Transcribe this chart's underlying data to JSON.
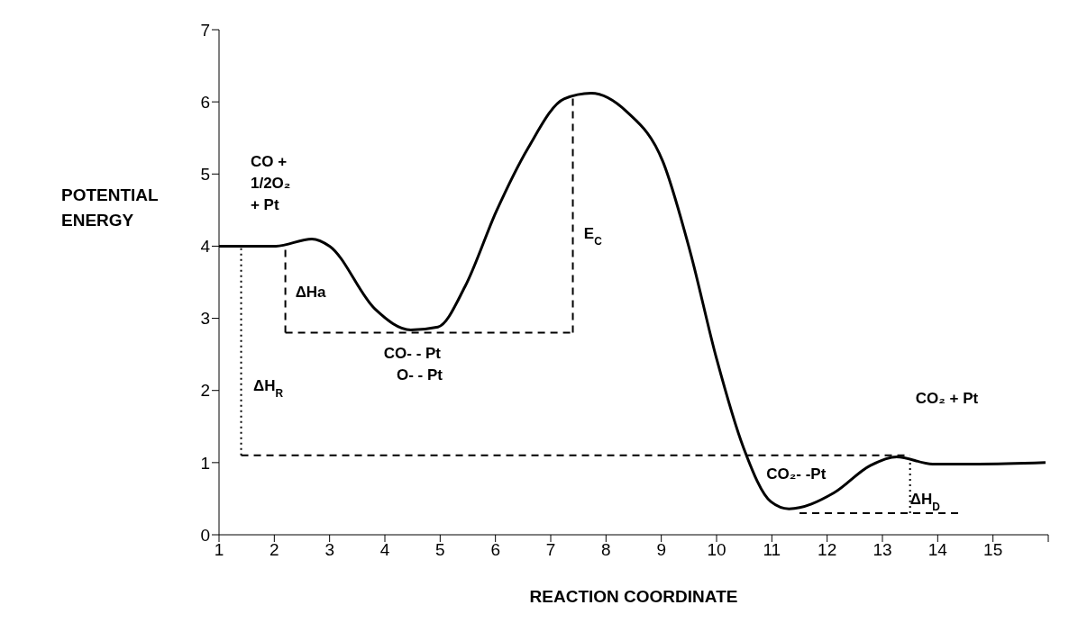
{
  "chart_data": {
    "type": "line",
    "xlabel": "REACTION COORDINATE",
    "ylabel": "POTENTIAL ENERGY",
    "xlim": [
      1,
      16
    ],
    "xticks": [
      1,
      2,
      3,
      4,
      5,
      6,
      7,
      8,
      9,
      10,
      11,
      12,
      13,
      14,
      15,
      {
        "value": 16,
        "label": null
      }
    ],
    "ylim": [
      0,
      7
    ],
    "yticks": [
      0,
      1,
      2,
      3,
      4,
      5,
      6,
      7
    ],
    "grid": false,
    "marker": "none",
    "series": [
      {
        "color": "#000000",
        "line_style": "solid",
        "x": [
          1,
          2.03,
          2.68,
          3.0,
          3.82,
          4.47,
          4.96,
          5.45,
          6.02,
          6.59,
          7.24,
          7.73,
          8.38,
          9.03,
          9.52,
          10.0,
          10.49,
          10.98,
          11.31,
          12.12,
          12.78,
          13.26,
          13.91,
          14.73,
          15.95
        ],
        "values": [
          4.0,
          4.0,
          4.1,
          4.0,
          3.13,
          2.84,
          2.88,
          3.44,
          4.49,
          5.36,
          6.04,
          6.12,
          5.86,
          5.17,
          3.93,
          2.44,
          1.2,
          0.46,
          0.36,
          0.58,
          0.96,
          1.08,
          0.98,
          0.98,
          1.0
        ]
      },
      {
        "color": "#000000",
        "line_style": "dashed",
        "x": [
          1.4,
          13.5
        ],
        "values": [
          1.1,
          1.1
        ]
      },
      {
        "color": "#000000",
        "line_style": "dashed",
        "x": [
          2.2,
          7.4
        ],
        "values": [
          2.8,
          2.8
        ]
      },
      {
        "color": "#000000",
        "line_style": "dashed",
        "x": [
          11.5,
          14.4
        ],
        "values": [
          0.3,
          0.3
        ]
      },
      {
        "color": "#000000",
        "line_style": "dotted",
        "x": [
          1.4,
          1.4
        ],
        "values": [
          1.1,
          4.0
        ]
      },
      {
        "color": "#000000",
        "line_style": "dashed",
        "x": [
          2.2,
          2.2
        ],
        "values": [
          2.8,
          4.0
        ]
      },
      {
        "color": "#000000",
        "line_style": "dashed",
        "x": [
          7.4,
          7.4
        ],
        "values": [
          2.8,
          6.1
        ]
      },
      {
        "color": "#000000",
        "line_style": "dotted",
        "x": [
          13.5,
          13.5
        ],
        "values": [
          0.3,
          1.05
        ]
      }
    ],
    "annotations": [
      "CO +\n1/2O₂\n+ Pt",
      "ΔHa",
      "ΔH$_{R}$",
      "E$_{C}$",
      "CO- - Pt\n   O- - Pt",
      "CO₂- -Pt",
      "ΔH$_{D}$",
      "CO₂ + Pt"
    ]
  }
}
